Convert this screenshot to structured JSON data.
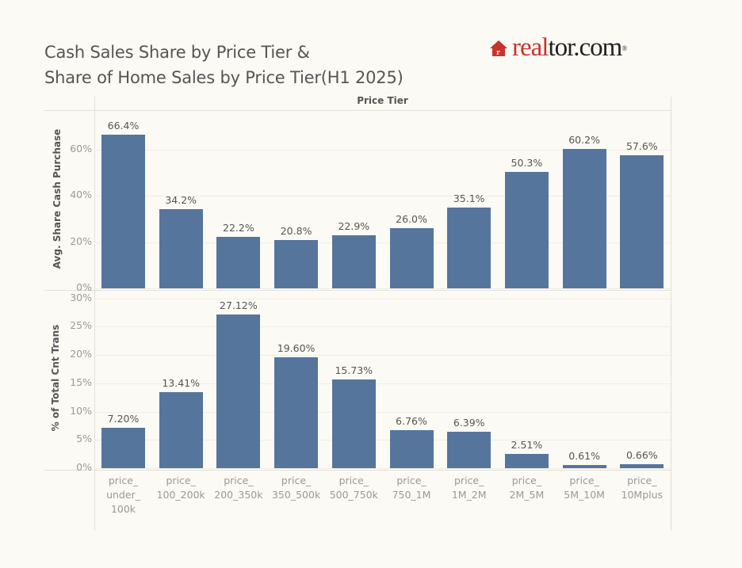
{
  "title": {
    "line1": "Cash Sales Share by Price Tier &",
    "line2": "Share of Home Sales by Price Tier(H1 2025)"
  },
  "logo": {
    "icon": "house-icon",
    "part1": "real",
    "part2": "tor.com",
    "mark": "®",
    "brand_color": "#c8332c"
  },
  "header": "Price Tier",
  "bar_color": "#56759c",
  "chart_data": [
    {
      "type": "bar",
      "title": "Cash Sales Share by Price Tier",
      "xlabel": "Price Tier",
      "ylabel": "Avg. Share Cash Purchase",
      "ylim": [
        0,
        70
      ],
      "yticks": [
        "0%",
        "20%",
        "40%",
        "60%"
      ],
      "grid": true,
      "categories": [
        "price_ under_ 100k",
        "price_ 100_200k",
        "price_ 200_350k",
        "price_ 350_500k",
        "price_ 500_750k",
        "price_ 750_1M",
        "price_ 1M_2M",
        "price_ 2M_5M",
        "price_ 5M_10M",
        "price_ 10Mplus"
      ],
      "values": [
        66.4,
        34.2,
        22.2,
        20.8,
        22.9,
        26.0,
        35.1,
        50.3,
        60.2,
        57.6
      ],
      "labels": [
        "66.4%",
        "34.2%",
        "22.2%",
        "20.8%",
        "22.9%",
        "26.0%",
        "35.1%",
        "50.3%",
        "60.2%",
        "57.6%"
      ]
    },
    {
      "type": "bar",
      "title": "Share of Home Sales by Price Tier (H1 2025)",
      "xlabel": "Price Tier",
      "ylabel": "% of Total Cnt Trans",
      "ylim": [
        0,
        30
      ],
      "yticks": [
        "0%",
        "5%",
        "10%",
        "15%",
        "20%",
        "25%",
        "30%"
      ],
      "grid": true,
      "categories": [
        "price_ under_ 100k",
        "price_ 100_200k",
        "price_ 200_350k",
        "price_ 350_500k",
        "price_ 500_750k",
        "price_ 750_1M",
        "price_ 1M_2M",
        "price_ 2M_5M",
        "price_ 5M_10M",
        "price_ 10Mplus"
      ],
      "values": [
        7.2,
        13.41,
        27.12,
        19.6,
        15.73,
        6.76,
        6.39,
        2.51,
        0.61,
        0.66
      ],
      "labels": [
        "7.20%",
        "13.41%",
        "27.12%",
        "19.60%",
        "15.73%",
        "6.76%",
        "6.39%",
        "2.51%",
        "0.61%",
        "0.66%"
      ]
    }
  ],
  "category_lines": [
    [
      "price_",
      "under_",
      "100k"
    ],
    [
      "price_",
      "100_200k"
    ],
    [
      "price_",
      "200_350k"
    ],
    [
      "price_",
      "350_500k"
    ],
    [
      "price_",
      "500_750k"
    ],
    [
      "price_",
      "750_1M"
    ],
    [
      "price_",
      "1M_2M"
    ],
    [
      "price_",
      "2M_5M"
    ],
    [
      "price_",
      "5M_10M"
    ],
    [
      "price_",
      "10Mplus"
    ]
  ]
}
